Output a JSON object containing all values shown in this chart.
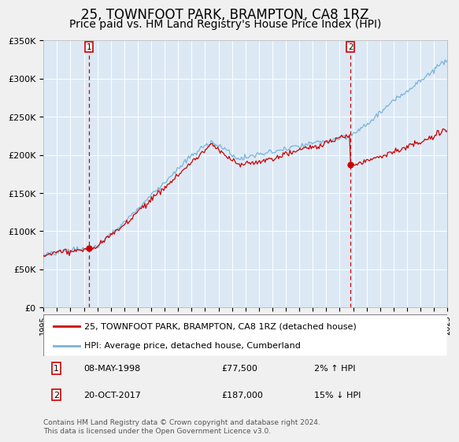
{
  "title": "25, TOWNFOOT PARK, BRAMPTON, CA8 1RZ",
  "subtitle": "Price paid vs. HM Land Registry's House Price Index (HPI)",
  "title_fontsize": 12,
  "subtitle_fontsize": 10,
  "bg_color": "#dce9f5",
  "grid_color": "#ffffff",
  "sale1_date": 1998.37,
  "sale1_price": 77500,
  "sale2_date": 2017.8,
  "sale2_price": 187000,
  "hpi_label": "HPI: Average price, detached house, Cumberland",
  "price_label": "25, TOWNFOOT PARK, BRAMPTON, CA8 1RZ (detached house)",
  "legend_entry1_date": "08-MAY-1998",
  "legend_entry1_price": "£77,500",
  "legend_entry1_hpi": "2% ↑ HPI",
  "legend_entry2_date": "20-OCT-2017",
  "legend_entry2_price": "£187,000",
  "legend_entry2_hpi": "15% ↓ HPI",
  "footer": "Contains HM Land Registry data © Crown copyright and database right 2024.\nThis data is licensed under the Open Government Licence v3.0.",
  "xmin": 1995,
  "xmax": 2025,
  "ymin": 0,
  "ymax": 350000,
  "yticks": [
    0,
    50000,
    100000,
    150000,
    200000,
    250000,
    300000,
    350000
  ],
  "ytick_labels": [
    "£0",
    "£50K",
    "£100K",
    "£150K",
    "£200K",
    "£250K",
    "£300K",
    "£350K"
  ],
  "hpi_color": "#7ab3d9",
  "price_color": "#cc0000",
  "vline_color": "#cc0000",
  "label_box_color": "#cc0000",
  "outer_bg": "#f0f0f0"
}
